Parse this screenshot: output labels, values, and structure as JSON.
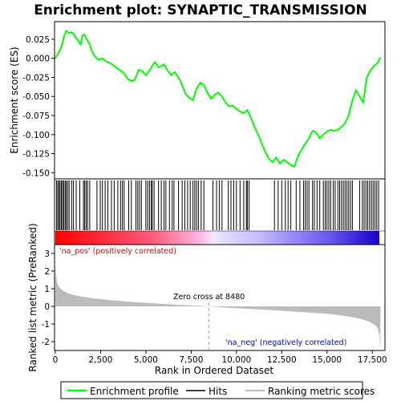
{
  "title": "Enrichment plot: SYNAPTIC_TRANSMISSION",
  "colors": {
    "enrichment_line": "#00ff00",
    "hit_line": "#000000",
    "metric_fill": "#bbbbbb",
    "pos_label": "#dd0000",
    "neg_label": "#0000cc",
    "zero_line": "#aaaaaa"
  },
  "legend": {
    "enrichment_profile": "Enrichment profile",
    "hits": "Hits",
    "ranking_metric": "Ranking metric scores"
  },
  "chart_data": [
    {
      "type": "line",
      "name": "enrichment-plot",
      "ylabel": "Enrichment score (ES)",
      "ylim": [
        -0.158,
        0.048
      ],
      "xlim": [
        0,
        18200
      ],
      "yticks": [
        0.025,
        0.0,
        -0.025,
        -0.05,
        -0.075,
        -0.1,
        -0.125,
        -0.15
      ],
      "ytick_labels": [
        "0.025",
        "0.000",
        "-0.025",
        "-0.050",
        "-0.075",
        "-0.100",
        "-0.125",
        "-0.150"
      ],
      "grid": false,
      "x": [
        0,
        150,
        300,
        400,
        500,
        600,
        700,
        800,
        900,
        1000,
        1100,
        1200,
        1300,
        1400,
        1500,
        1600,
        1700,
        1800,
        1900,
        2000,
        2200,
        2400,
        2600,
        2800,
        3000,
        3200,
        3400,
        3600,
        3800,
        4000,
        4200,
        4400,
        4600,
        4800,
        5000,
        5200,
        5400,
        5500,
        5700,
        5900,
        6000,
        6200,
        6400,
        6600,
        6800,
        7000,
        7200,
        7400,
        7600,
        7800,
        8000,
        8200,
        8400,
        8600,
        8800,
        9000,
        9200,
        9400,
        9600,
        9800,
        10000,
        10200,
        10400,
        10600,
        10800,
        11000,
        11200,
        11400,
        11600,
        11800,
        12000,
        12200,
        12400,
        12600,
        12800,
        13000,
        13200,
        13400,
        13600,
        13800,
        14000,
        14200,
        14400,
        14600,
        14800,
        15000,
        15200,
        15400,
        15600,
        15800,
        16000,
        16200,
        16400,
        16600,
        16800,
        17000,
        17200,
        17400,
        17600,
        17800,
        17950
      ],
      "y": [
        0.0,
        0.006,
        0.013,
        0.02,
        0.03,
        0.036,
        0.034,
        0.033,
        0.034,
        0.032,
        0.028,
        0.025,
        0.022,
        0.018,
        0.03,
        0.031,
        0.027,
        0.022,
        0.018,
        0.01,
        0.002,
        -0.002,
        0.0,
        -0.004,
        -0.006,
        -0.009,
        -0.013,
        -0.016,
        -0.02,
        -0.027,
        -0.03,
        -0.028,
        -0.015,
        -0.017,
        -0.022,
        -0.016,
        -0.008,
        -0.005,
        -0.012,
        -0.01,
        -0.008,
        -0.016,
        -0.022,
        -0.018,
        -0.025,
        -0.035,
        -0.047,
        -0.052,
        -0.055,
        -0.04,
        -0.032,
        -0.035,
        -0.045,
        -0.053,
        -0.048,
        -0.045,
        -0.05,
        -0.058,
        -0.063,
        -0.062,
        -0.066,
        -0.07,
        -0.072,
        -0.068,
        -0.078,
        -0.09,
        -0.1,
        -0.112,
        -0.123,
        -0.132,
        -0.136,
        -0.13,
        -0.138,
        -0.133,
        -0.136,
        -0.14,
        -0.142,
        -0.128,
        -0.12,
        -0.112,
        -0.105,
        -0.095,
        -0.097,
        -0.105,
        -0.1,
        -0.096,
        -0.094,
        -0.095,
        -0.094,
        -0.09,
        -0.085,
        -0.075,
        -0.055,
        -0.042,
        -0.05,
        -0.058,
        -0.025,
        -0.016,
        -0.01,
        -0.006,
        0.001
      ]
    },
    {
      "type": "scatter",
      "name": "hits",
      "positions": [
        60,
        130,
        200,
        260,
        330,
        400,
        460,
        540,
        600,
        680,
        760,
        900,
        1000,
        1150,
        1350,
        1550,
        1620,
        1700,
        1780,
        1900,
        2300,
        2480,
        2600,
        2750,
        2900,
        3100,
        3250,
        3450,
        3600,
        3700,
        3800,
        4050,
        4200,
        4450,
        4550,
        4650,
        4750,
        5000,
        5100,
        5200,
        5300,
        5350,
        5450,
        5700,
        5850,
        6000,
        6100,
        6300,
        6450,
        6550,
        6800,
        7000,
        7150,
        7300,
        7450,
        7600,
        7700,
        7800,
        7900,
        8050,
        8200,
        8700,
        8900,
        9050,
        9200,
        9550,
        9700,
        9850,
        10000,
        10200,
        10400,
        10550,
        10600,
        10700,
        12100,
        12300,
        12500,
        12700,
        12850,
        13000,
        13300,
        13500,
        13700,
        13800,
        13900,
        14000,
        14200,
        14300,
        14450,
        14600,
        14800,
        14900,
        15000,
        15100,
        15200,
        15350,
        15450,
        15600,
        15700,
        15800,
        15900,
        16000,
        16100,
        16200,
        16300,
        16400,
        16800,
        16950,
        17050,
        17150,
        17250,
        17350,
        17450,
        17550,
        17650,
        17750,
        17850
      ]
    },
    {
      "type": "area",
      "name": "ranked-list-metric",
      "ylabel": "Ranked list metric (PreRanked)",
      "xlabel": "Rank in Ordered Dataset",
      "ylim": [
        -2.5,
        3.5
      ],
      "xlim": [
        0,
        18200
      ],
      "yticks": [
        3,
        2,
        1,
        0,
        -1,
        -2
      ],
      "ytick_labels": [
        "3",
        "2",
        "1",
        "0",
        "-1",
        "-2"
      ],
      "xticks": [
        0,
        2500,
        5000,
        7500,
        10000,
        12500,
        15000,
        17500
      ],
      "xtick_labels": [
        "0",
        "2,500",
        "5,000",
        "7,500",
        "10,000",
        "12,500",
        "15,000",
        "17,500"
      ],
      "x": [
        0,
        30,
        100,
        200,
        400,
        700,
        1000,
        1500,
        2000,
        3000,
        4000,
        5000,
        6000,
        7000,
        8000,
        8480,
        9000,
        10000,
        11000,
        12000,
        13000,
        14000,
        15000,
        15500,
        16000,
        16500,
        17000,
        17300,
        17500,
        17700,
        17800,
        17900,
        17950
      ],
      "y": [
        2.5,
        1.8,
        1.35,
        1.1,
        0.9,
        0.75,
        0.65,
        0.55,
        0.47,
        0.36,
        0.27,
        0.2,
        0.13,
        0.08,
        0.03,
        0.0,
        -0.04,
        -0.1,
        -0.16,
        -0.22,
        -0.28,
        -0.35,
        -0.42,
        -0.48,
        -0.55,
        -0.63,
        -0.75,
        -0.86,
        -0.96,
        -1.1,
        -1.25,
        -1.6,
        -2.45
      ],
      "zero_cross_label": "Zero cross at 8480",
      "pos_label": "'na_pos' (positively correlated)",
      "neg_label": "'na_neg' (negatively correlated)"
    }
  ]
}
